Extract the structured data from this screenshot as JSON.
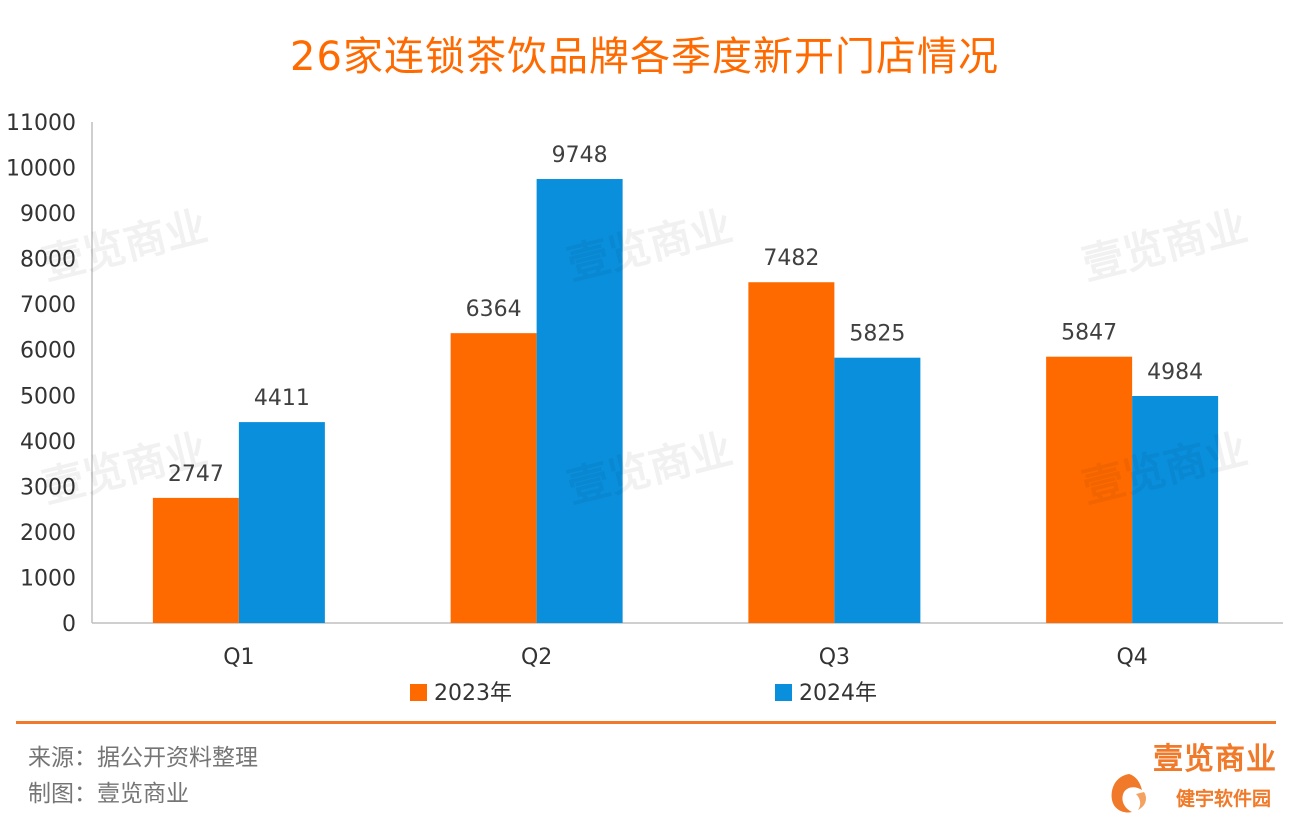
{
  "chart_data": {
    "type": "bar",
    "title": "26家连锁茶饮品牌各季度新开门店情况",
    "categories": [
      "Q1",
      "Q2",
      "Q3",
      "Q4"
    ],
    "series": [
      {
        "name": "2023年",
        "color": "#FF6A00",
        "values": [
          2747,
          6364,
          7482,
          5847
        ]
      },
      {
        "name": "2024年",
        "color": "#0A8FDD",
        "values": [
          4411,
          9748,
          5825,
          4984
        ]
      }
    ],
    "ylim": [
      0,
      11000
    ],
    "yticks": [
      0,
      1000,
      2000,
      3000,
      4000,
      5000,
      6000,
      7000,
      8000,
      9000,
      10000,
      11000
    ],
    "data_labels": true,
    "legend_position": "bottom",
    "grid": false
  },
  "watermark": "壹览商业",
  "footer": {
    "source": "来源：据公开资料整理",
    "made_by": "制图：壹览商业"
  },
  "brand": {
    "name": "壹览商业",
    "sub": "健宇软件园"
  }
}
